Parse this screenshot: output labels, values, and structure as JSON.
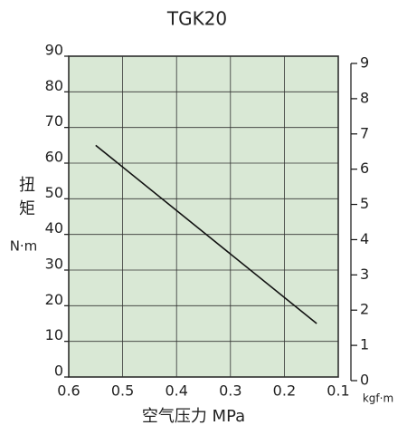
{
  "chart_data": {
    "type": "line",
    "title": "TGK20",
    "x_label": "空气压力 MPa",
    "y_label": "扭矩",
    "y_unit": "N·m",
    "y2_unit": "kgf·m",
    "xlim": [
      0.6,
      0.1
    ],
    "xticks": [
      0.6,
      0.5,
      0.4,
      0.3,
      0.2,
      0.1
    ],
    "ylim": [
      0,
      90
    ],
    "yticks": [
      0,
      10,
      20,
      30,
      40,
      50,
      60,
      70,
      80,
      90
    ],
    "y2lim": [
      0,
      9
    ],
    "y2ticks": [
      0,
      1,
      2,
      3,
      4,
      5,
      6,
      7,
      8,
      9
    ],
    "grid": true,
    "background": "#d9e8d5",
    "series": [
      {
        "color": "#111111",
        "x": [
          0.55,
          0.14
        ],
        "values": [
          65,
          15
        ]
      }
    ]
  }
}
